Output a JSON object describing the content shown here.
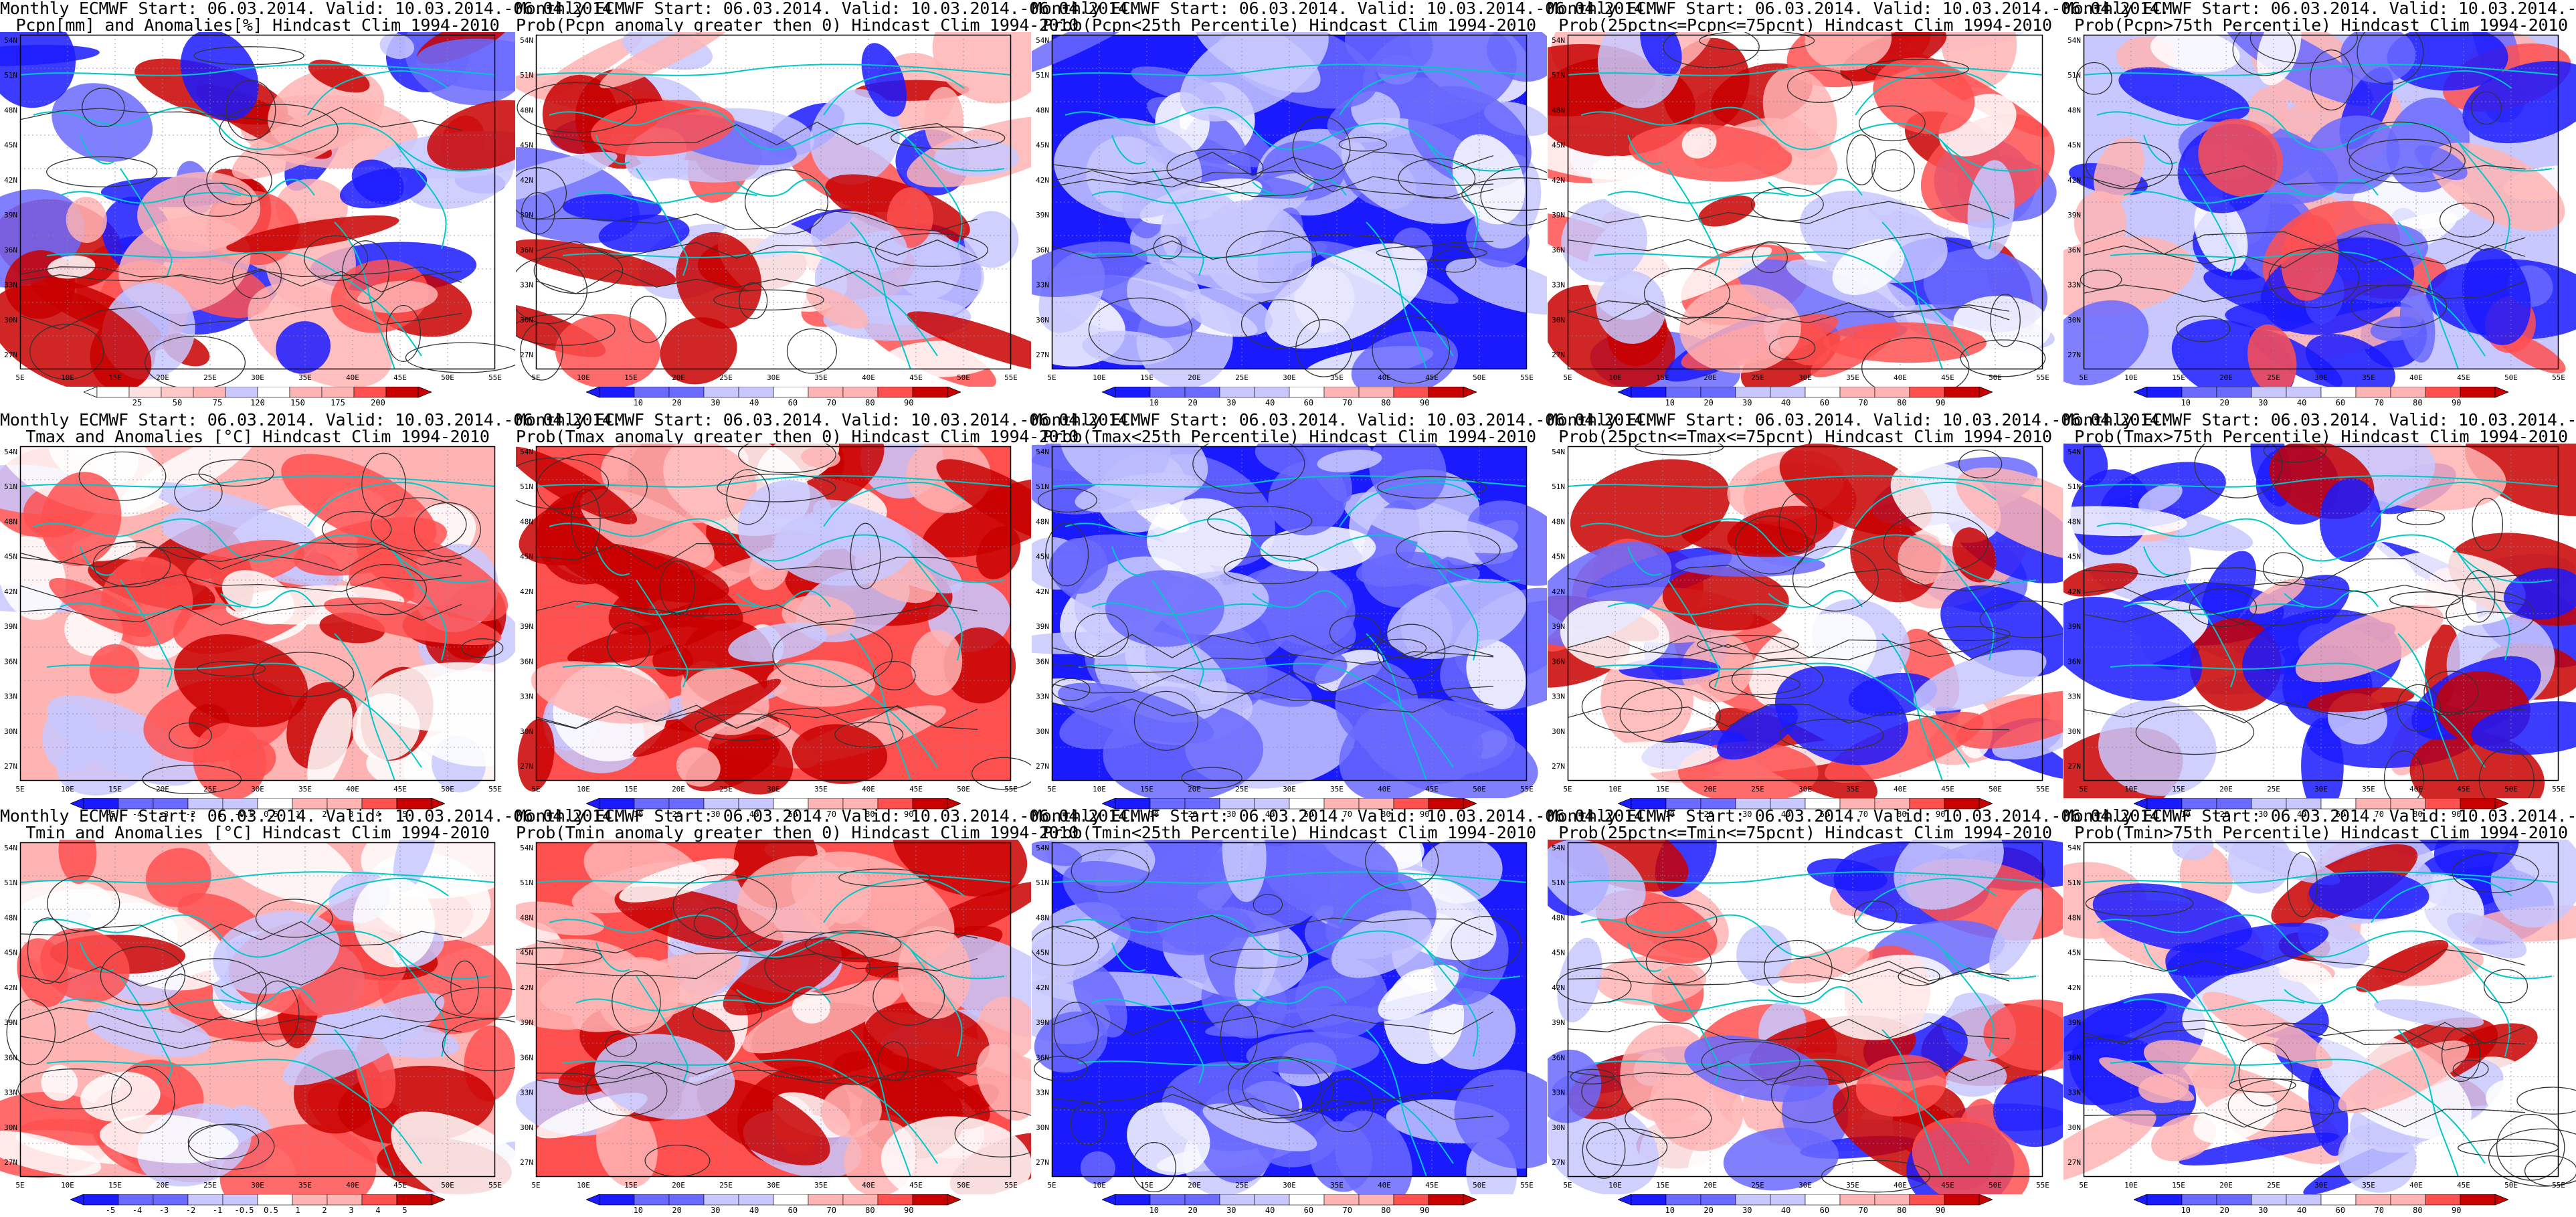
{
  "header_line": "Monthly ECMWF Start: 06.03.2014. Valid: 10.03.2014.-06.04.2014.",
  "lat_ticks": [
    "54N",
    "51N",
    "48N",
    "45N",
    "42N",
    "39N",
    "36N",
    "33N",
    "30N",
    "27N"
  ],
  "lon_ticks": [
    "5E",
    "10E",
    "15E",
    "20E",
    "25E",
    "30E",
    "35E",
    "40E",
    "45E",
    "50E",
    "55E"
  ],
  "anomaly_pcpn_ticks": [
    "25",
    "50",
    "75",
    "120",
    "150",
    "175",
    "200"
  ],
  "anomaly_temp_ticks": [
    "-5",
    "-4",
    "-3",
    "-2",
    "-1",
    "-0.5",
    "0.5",
    "1",
    "2",
    "3",
    "4",
    "5"
  ],
  "prob_ticks": [
    "10",
    "20",
    "30",
    "40",
    "60",
    "70",
    "80",
    "90"
  ],
  "colors": {
    "coast": "#00c8c8",
    "contour": "#333333",
    "blue_dark": "#1a1aff",
    "blue_mid": "#6a6aff",
    "blue_light": "#c8c8ff",
    "red_light": "#ffb4b4",
    "red_mid": "#ff5050",
    "red_dark": "#c80000"
  },
  "panels": [
    {
      "title2": "Pcpn[mm] and Anomalies[%] Hindcast Clim 1994-2010",
      "field": "pcpn_anom"
    },
    {
      "title2": "Prob(Pcpn anomaly greater then 0) Hindcast Clim 1994-2010",
      "field": "pcpn_pos"
    },
    {
      "title2": "Prob(Pcpn<25th Percentile) Hindcast Clim 1994-2010",
      "field": "pcpn_low"
    },
    {
      "title2": "Prob(25pctn<=Pcpn<=75pcnt) Hindcast Clim 1994-2010",
      "field": "pcpn_mid"
    },
    {
      "title2": "Prob(Pcpn>75th Percentile) Hindcast Clim 1994-2010",
      "field": "pcpn_high"
    },
    {
      "title2": "Tmax and Anomalies [°C] Hindcast Clim 1994-2010",
      "field": "tmax_anom"
    },
    {
      "title2": "Prob(Tmax anomaly greater then 0) Hindcast Clim 1994-2010",
      "field": "tmax_pos"
    },
    {
      "title2": "Prob(Tmax<25th Percentile) Hindcast Clim 1994-2010",
      "field": "tmax_low"
    },
    {
      "title2": "Prob(25pctn<=Tmax<=75pcnt) Hindcast Clim 1994-2010",
      "field": "tmax_mid"
    },
    {
      "title2": "Prob(Tmax>75th Percentile) Hindcast Clim 1994-2010",
      "field": "tmax_high"
    },
    {
      "title2": "Tmin and Anomalies [°C] Hindcast Clim 1994-2010",
      "field": "tmin_anom"
    },
    {
      "title2": "Prob(Tmin anomaly greater then 0) Hindcast Clim 1994-2010",
      "field": "tmin_pos"
    },
    {
      "title2": "Prob(Tmin<25th Percentile) Hindcast Clim 1994-2010",
      "field": "tmin_low"
    },
    {
      "title2": "Prob(25pctn<=Tmin<=75pcnt) Hindcast Clim 1994-2010",
      "field": "tmin_mid"
    },
    {
      "title2": "Prob(Tmin>75th Percentile) Hindcast Clim 1994-2010",
      "field": "tmin_high"
    }
  ]
}
